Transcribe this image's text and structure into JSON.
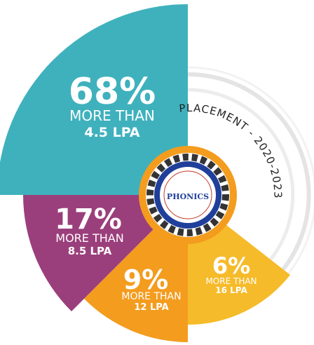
{
  "heading": "PLACEMENT - 2020-2023",
  "logo": {
    "name": "PHONICS"
  },
  "segments": [
    {
      "value": "68%",
      "line1": "MORE THAN",
      "line2": "4.5 LPA"
    },
    {
      "value": "17%",
      "line1": "MORE THAN",
      "line2": "8.5 LPA"
    },
    {
      "value": "9%",
      "line1": "MORE THAN",
      "line2": "12 LPA"
    },
    {
      "value": "6%",
      "line1": "MORE THAN",
      "line2": "16 LPA"
    }
  ]
}
